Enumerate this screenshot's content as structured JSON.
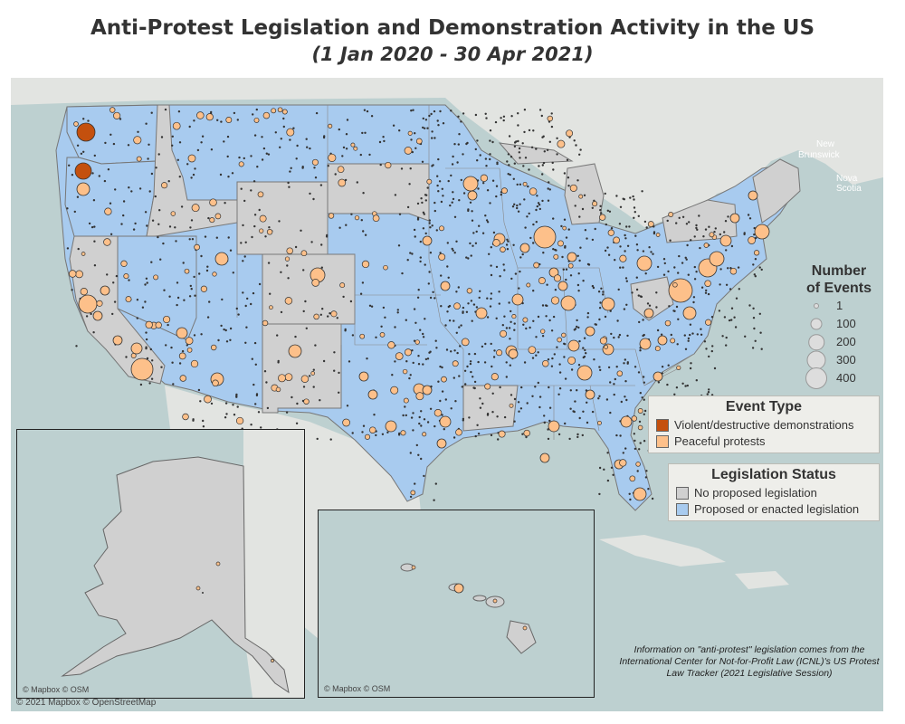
{
  "title": "Anti-Protest Legislation and Demonstration Activity in the US",
  "subtitle": "(1 Jan 2020 - 30 Apr 2021)",
  "colors": {
    "water": "#bdd0d0",
    "land": "#e2e4e1",
    "no_legislation": "#d0d0d0",
    "legislation": "#a8cbef",
    "violent": "#c4500e",
    "peaceful": "#fdc08a",
    "dot": "#333333"
  },
  "geo_labels": [
    "New",
    "Brunswick",
    "Nova Scotia"
  ],
  "size_legend": {
    "title_line1": "Number",
    "title_line2": "of Events",
    "items": [
      {
        "label": "1",
        "value": 1
      },
      {
        "label": "100",
        "value": 100
      },
      {
        "label": "200",
        "value": 200
      },
      {
        "label": "300",
        "value": 300
      },
      {
        "label": "400",
        "value": 400
      }
    ]
  },
  "event_type_legend": {
    "title": "Event Type",
    "items": [
      {
        "label": "Violent/destructive demonstrations",
        "color": "#c4500e"
      },
      {
        "label": "Peaceful protests",
        "color": "#fdc08a"
      }
    ]
  },
  "legislation_legend": {
    "title": "Legislation Status",
    "items": [
      {
        "label": "No proposed legislation",
        "color": "#d0d0d0"
      },
      {
        "label": "Proposed or enacted legislation",
        "color": "#a8cbef"
      }
    ]
  },
  "note": "Information on \"anti-protest\" legislation comes from the International Center for Not-for-Profit Law (ICNL)'s US Protest Law Tracker (2021 Legislative Session)",
  "inset_credit": "© Mapbox © OSM",
  "map_credit": "© 2021 Mapbox © OpenStreetMap"
}
